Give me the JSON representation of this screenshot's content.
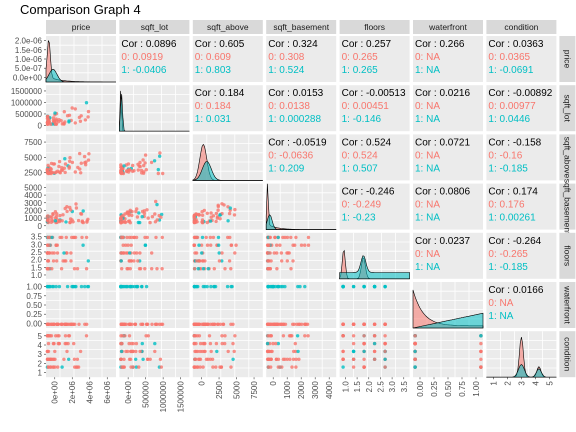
{
  "title": "Comparison Graph 4",
  "colors": {
    "group0": "#F8766D",
    "group1": "#00BFC4",
    "panel": "#EBEBEB",
    "strip": "#D9D9D9"
  },
  "chart_data": {
    "type": "scatter",
    "title": "Comparison Graph 4",
    "grid": true,
    "variables": [
      "price",
      "sqft_lot",
      "sqft_above",
      "sqft_basement",
      "floors",
      "waterfront",
      "condition"
    ],
    "groups": [
      "0",
      "1"
    ],
    "x_ticks": {
      "price": [
        "0e+00",
        "2e+06",
        "4e+06",
        "6e+06"
      ],
      "sqft_lot": [
        "0e+00",
        "500000",
        "1000000",
        "1500000"
      ],
      "sqft_above": [
        "0",
        "2500",
        "5000",
        "7500"
      ],
      "sqft_basement": [
        "0",
        "1000",
        "2000",
        "3000",
        "4000"
      ],
      "floors": [
        "1.0",
        "1.5",
        "2.0",
        "2.5",
        "3.0",
        "3.5"
      ],
      "waterfront": [
        "0.00",
        "0.25",
        "0.50",
        "0.75",
        "1.00"
      ],
      "condition": [
        "1",
        "2",
        "3",
        "4",
        "5"
      ]
    },
    "y_ticks": {
      "price": [
        "0.0e+00",
        "5.0e-07",
        "1.0e-06",
        "1.5e-06",
        "2.0e-06"
      ],
      "sqft_lot": [
        "0",
        "500000",
        "1000000",
        "1500000"
      ],
      "sqft_above": [
        "2500",
        "5000",
        "7500"
      ],
      "sqft_basement": [
        "0",
        "1000",
        "2000",
        "3000",
        "4000",
        "5000"
      ],
      "floors": [
        "1.0",
        "1.5",
        "2.0",
        "2.5",
        "3.0",
        "3.5"
      ],
      "waterfront": [
        "0.00",
        "0.25",
        "0.50",
        "0.75",
        "1.00"
      ],
      "condition": [
        "1",
        "2",
        "3",
        "4",
        "5"
      ]
    },
    "correlations": [
      {
        "row": 0,
        "col": 1,
        "overall": "Cor : 0.0896",
        "g0": "0: 0.0919",
        "g1": "1: -0.0406"
      },
      {
        "row": 0,
        "col": 2,
        "overall": "Cor : 0.605",
        "g0": "0: 0.609",
        "g1": "1: 0.803"
      },
      {
        "row": 0,
        "col": 3,
        "overall": "Cor : 0.324",
        "g0": "0: 0.308",
        "g1": "1: 0.524"
      },
      {
        "row": 0,
        "col": 4,
        "overall": "Cor : 0.257",
        "g0": "0: 0.265",
        "g1": "1: 0.265"
      },
      {
        "row": 0,
        "col": 5,
        "overall": "Cor : 0.266",
        "g0": "0: NA",
        "g1": "1: NA"
      },
      {
        "row": 0,
        "col": 6,
        "overall": "Cor : 0.0363",
        "g0": "0: 0.0365",
        "g1": "1: -0.0691"
      },
      {
        "row": 1,
        "col": 2,
        "overall": "Cor : 0.184",
        "g0": "0: 0.184",
        "g1": "1: 0.031"
      },
      {
        "row": 1,
        "col": 3,
        "overall": "Cor : 0.0153",
        "g0": "0: 0.0138",
        "g1": "1: 0.000288"
      },
      {
        "row": 1,
        "col": 4,
        "overall": "Cor : -0.00513",
        "g0": "0: 0.00451",
        "g1": "1: -0.146"
      },
      {
        "row": 1,
        "col": 5,
        "overall": "Cor : 0.0216",
        "g0": "0: NA",
        "g1": "1: NA"
      },
      {
        "row": 1,
        "col": 6,
        "overall": "Cor : -0.00892",
        "g0": "0: 0.00977",
        "g1": "1: 0.0446"
      },
      {
        "row": 2,
        "col": 3,
        "overall": "Cor : -0.0519",
        "g0": "0: -0.0636",
        "g1": "1: 0.209"
      },
      {
        "row": 2,
        "col": 4,
        "overall": "Cor : 0.524",
        "g0": "0: 0.524",
        "g1": "1: 0.507"
      },
      {
        "row": 2,
        "col": 5,
        "overall": "Cor : 0.0721",
        "g0": "0: NA",
        "g1": "1: NA"
      },
      {
        "row": 2,
        "col": 6,
        "overall": "Cor : -0.158",
        "g0": "0: -0.16",
        "g1": "1: -0.185"
      },
      {
        "row": 3,
        "col": 4,
        "overall": "Cor : -0.246",
        "g0": "0: -0.249",
        "g1": "1: -0.23"
      },
      {
        "row": 3,
        "col": 5,
        "overall": "Cor : 0.0806",
        "g0": "0: NA",
        "g1": "1: NA"
      },
      {
        "row": 3,
        "col": 6,
        "overall": "Cor : 0.174",
        "g0": "0: 0.176",
        "g1": "1: 0.00261"
      },
      {
        "row": 4,
        "col": 5,
        "overall": "Cor : 0.0237",
        "g0": "0: NA",
        "g1": "1: NA"
      },
      {
        "row": 4,
        "col": 6,
        "overall": "Cor : -0.264",
        "g0": "0: -0.265",
        "g1": "1: -0.185"
      },
      {
        "row": 5,
        "col": 6,
        "overall": "Cor : 0.0166",
        "g0": "0: NA",
        "g1": "1: NA"
      }
    ]
  }
}
